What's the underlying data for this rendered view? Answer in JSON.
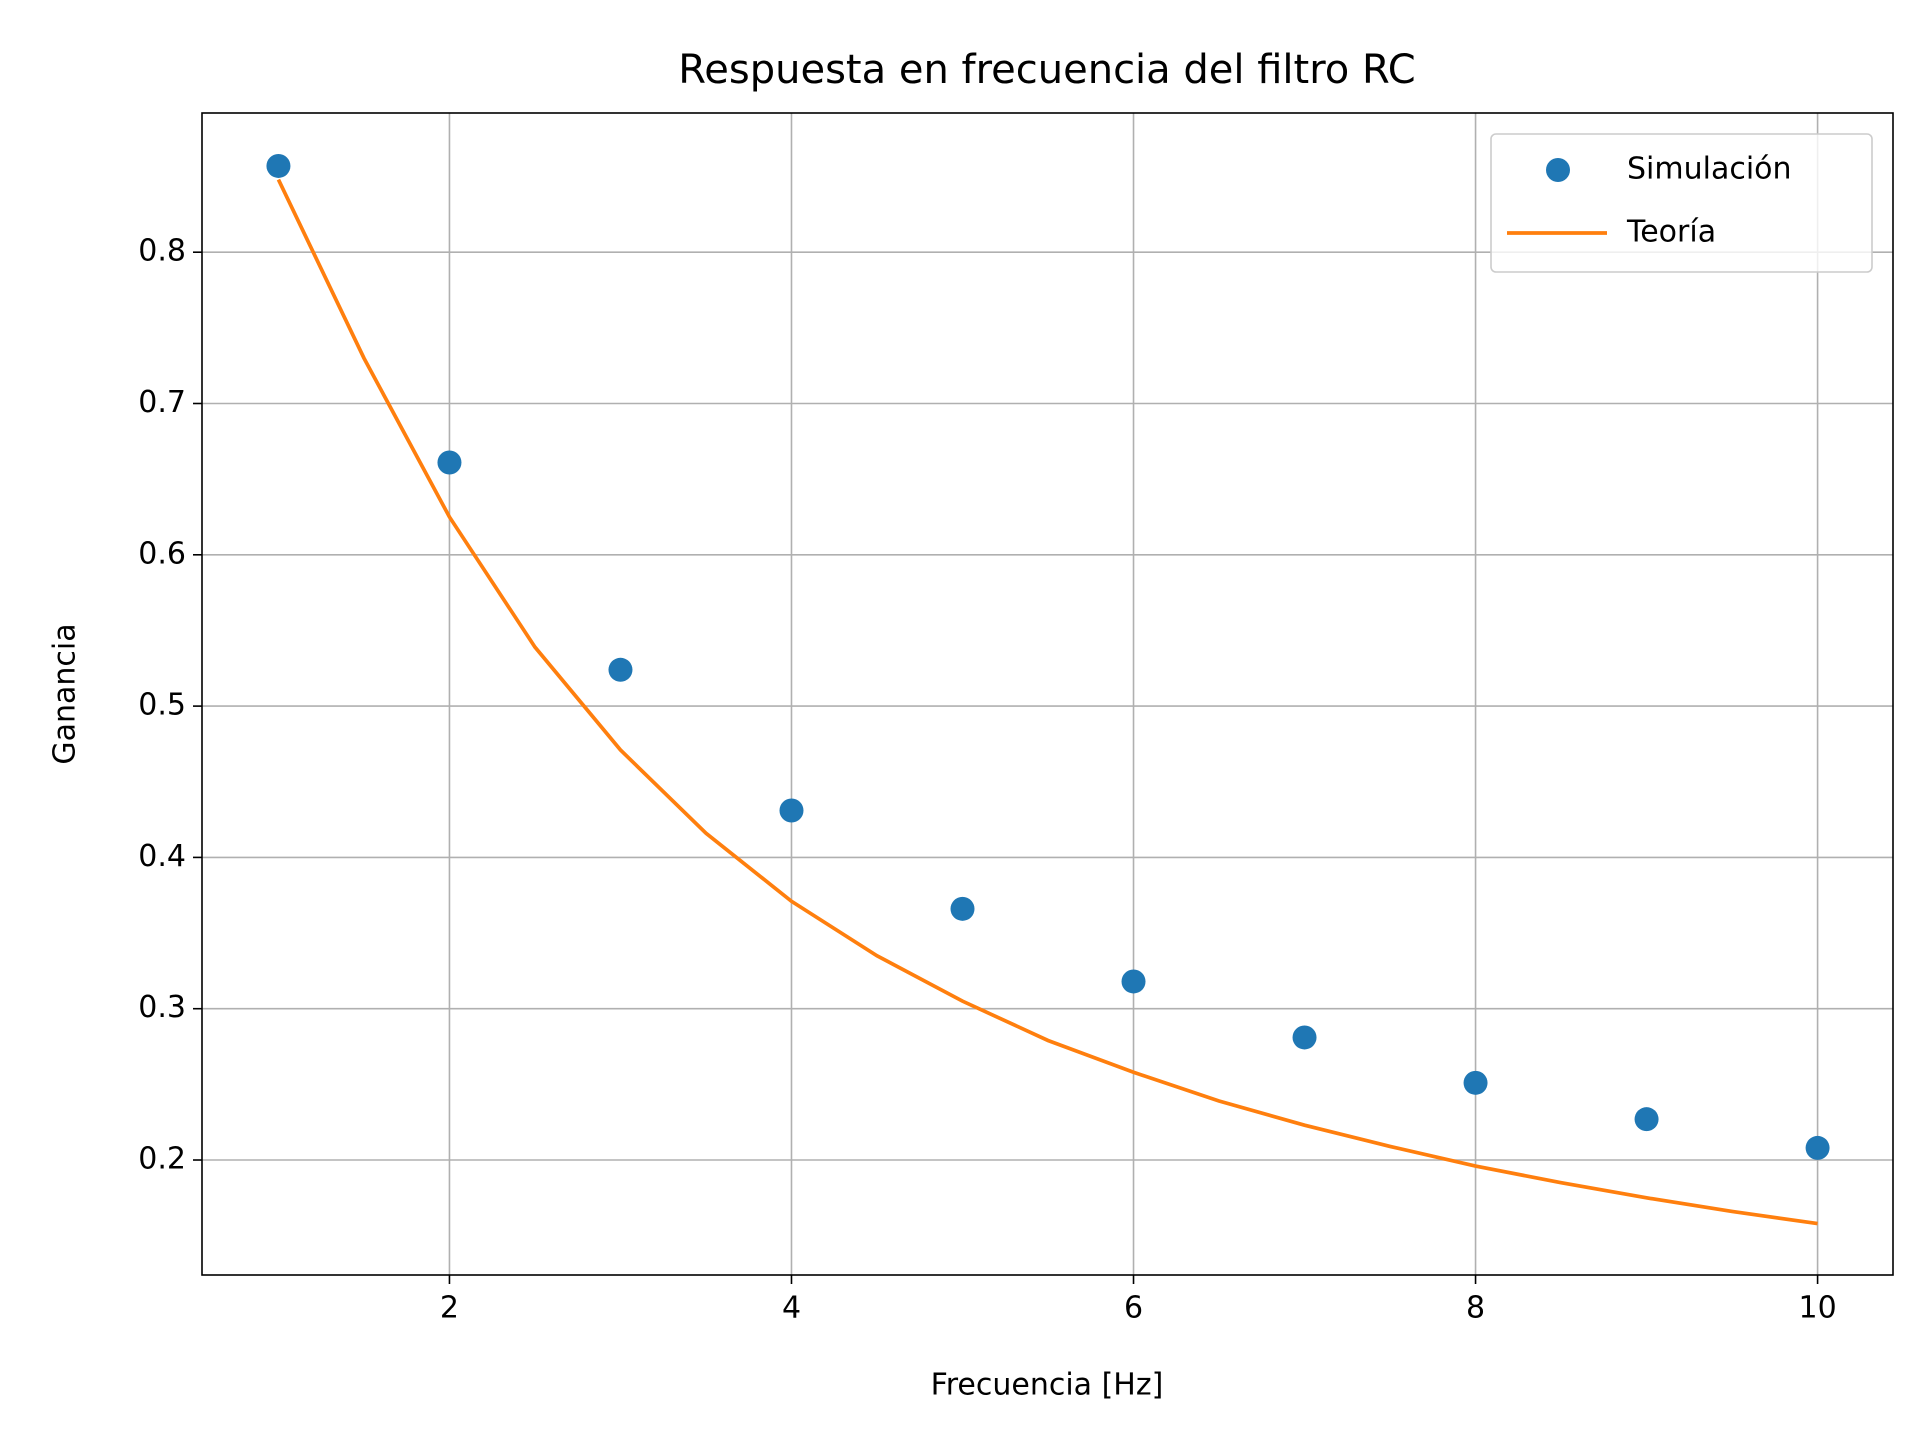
{
  "chart_data": {
    "type": "line",
    "title": "Respuesta en frecuencia del filtro RC",
    "x_label": "Frecuencia [Hz]",
    "y_label": "Ganancia",
    "xlim": [
      0.553,
      10.441
    ],
    "ylim": [
      0.124,
      0.892
    ],
    "xticks": [
      2,
      4,
      6,
      8,
      10
    ],
    "yticks": [
      0.2,
      0.3,
      0.4,
      0.5,
      0.6,
      0.7,
      0.8
    ],
    "grid": true,
    "legend": "upper right",
    "series": [
      {
        "name": "Simulación",
        "color": "#1f77b4",
        "style": "markers",
        "x": [
          1,
          2,
          3,
          4,
          5,
          6,
          7,
          8,
          9,
          10
        ],
        "values": [
          0.857,
          0.661,
          0.524,
          0.431,
          0.366,
          0.318,
          0.281,
          0.251,
          0.227,
          0.208
        ]
      },
      {
        "name": "Teoría",
        "color": "#ff7f0e",
        "style": "line",
        "x": [
          1,
          1.5,
          2,
          2.5,
          3,
          3.5,
          4,
          4.5,
          5,
          5.5,
          6,
          6.5,
          7,
          7.5,
          8,
          8.5,
          9,
          9.5,
          10
        ],
        "values": [
          0.848,
          0.73,
          0.625,
          0.539,
          0.471,
          0.416,
          0.371,
          0.335,
          0.305,
          0.279,
          0.258,
          0.239,
          0.223,
          0.209,
          0.196,
          0.185,
          0.175,
          0.166,
          0.158
        ]
      }
    ]
  }
}
